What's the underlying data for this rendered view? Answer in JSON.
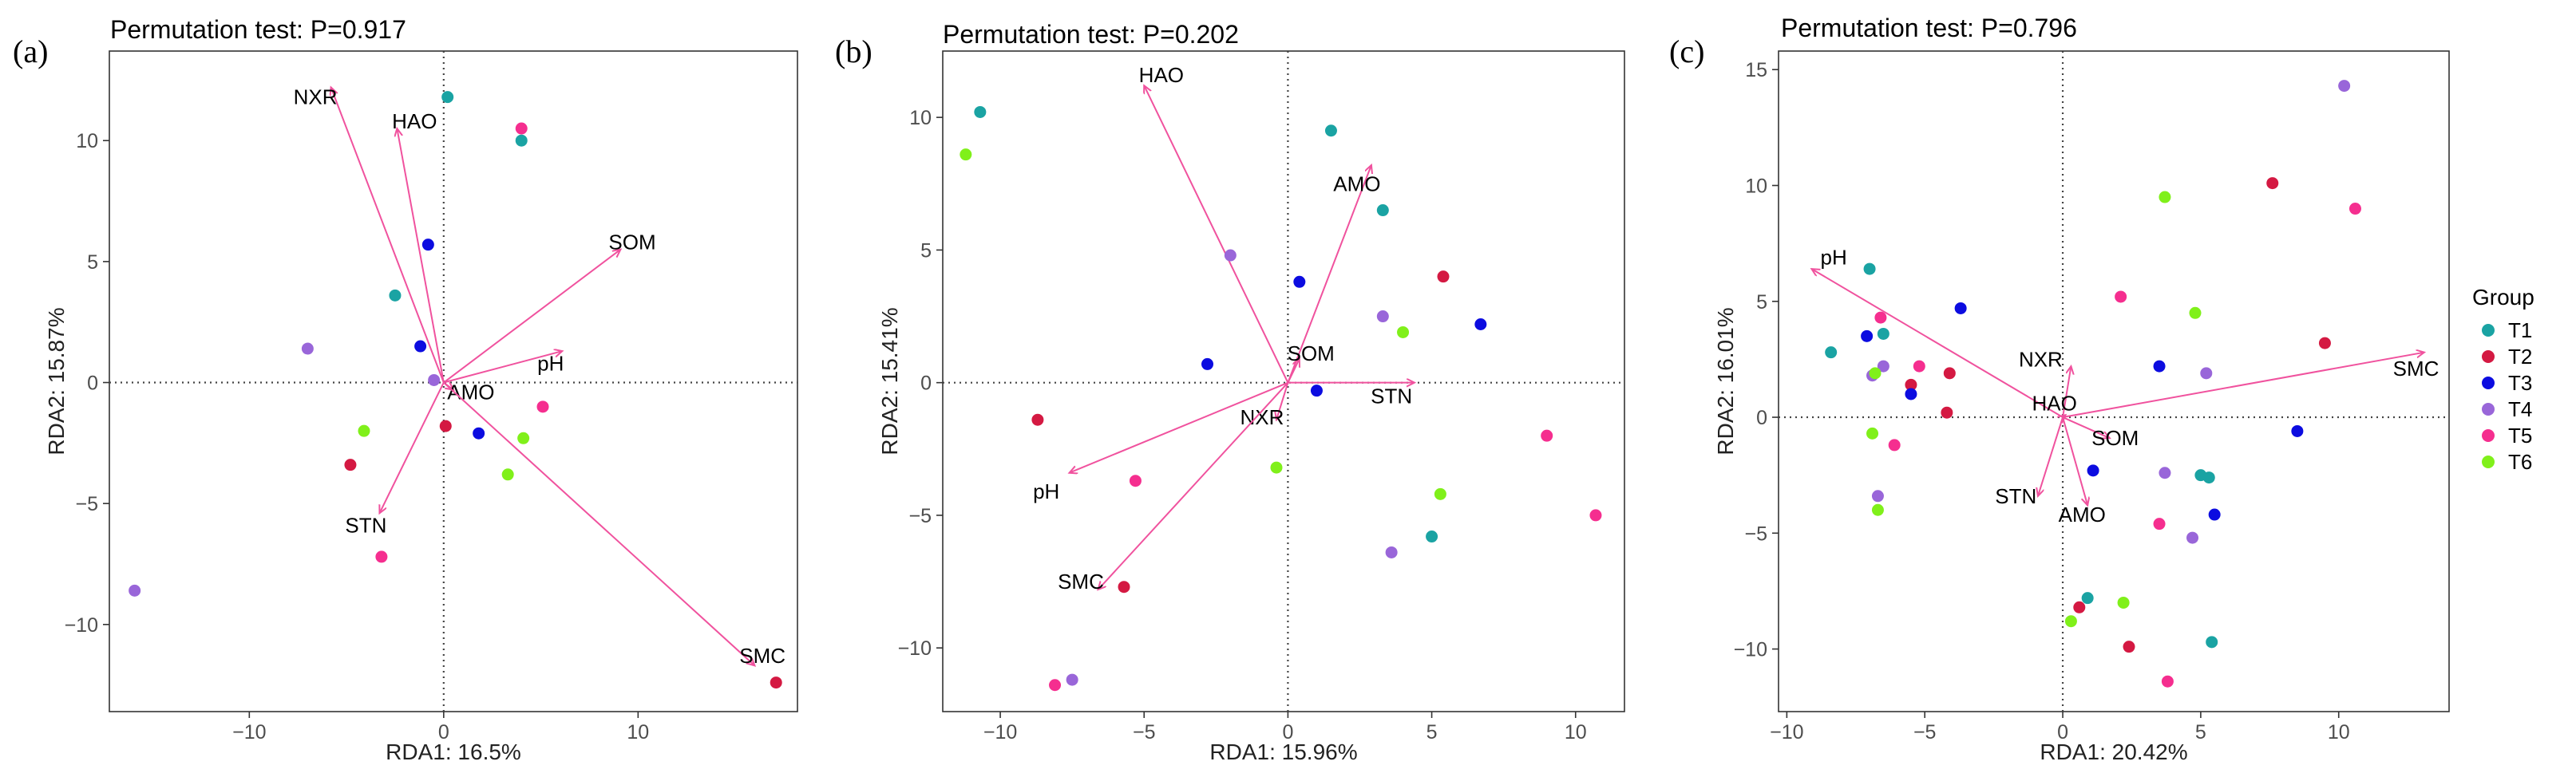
{
  "chart_data": [
    {
      "type": "scatter",
      "panel_label": "(a)",
      "title": "Permutation test: P=0.917",
      "xlabel": "RDA1: 16.5%",
      "ylabel": "RDA2: 15.87%",
      "xlim": [
        -17.2,
        18.2
      ],
      "ylim": [
        -13.6,
        13.7
      ],
      "xticks": [
        -10,
        0,
        10
      ],
      "yticks": [
        -10,
        -5,
        0,
        5,
        10
      ],
      "xtick_labels": [
        "−10",
        "0",
        "10"
      ],
      "ytick_labels": [
        "−10",
        "−5",
        "0",
        "5",
        "10"
      ],
      "arrows": [
        {
          "label": "NXR",
          "x": -5.8,
          "y": 12.2,
          "lx": -6.6,
          "ly": 11.8
        },
        {
          "label": "HAO",
          "x": -2.4,
          "y": 10.5,
          "lx": -1.5,
          "ly": 10.8
        },
        {
          "label": "SOM",
          "x": 9.1,
          "y": 5.5,
          "lx": 9.7,
          "ly": 5.8
        },
        {
          "label": "pH",
          "x": 6.1,
          "y": 1.3,
          "lx": 5.5,
          "ly": 0.8
        },
        {
          "label": "AMO",
          "x": 0.5,
          "y": -0.3,
          "lx": 1.4,
          "ly": -0.4
        },
        {
          "label": "STN",
          "x": -3.3,
          "y": -5.4,
          "lx": -4.0,
          "ly": -5.9
        },
        {
          "label": "SMC",
          "x": 16.0,
          "y": -11.7,
          "lx": 16.4,
          "ly": -11.3
        }
      ],
      "groups": [
        {
          "name": "T1",
          "points": [
            [
              0.2,
              11.8
            ],
            [
              4.0,
              10.0
            ],
            [
              -2.5,
              3.6
            ]
          ]
        },
        {
          "name": "T2",
          "points": [
            [
              -4.8,
              -3.4
            ],
            [
              0.1,
              -1.8
            ],
            [
              17.1,
              -12.4
            ]
          ]
        },
        {
          "name": "T3",
          "points": [
            [
              -0.8,
              5.7
            ],
            [
              -1.2,
              1.5
            ],
            [
              1.8,
              -2.1
            ]
          ]
        },
        {
          "name": "T4",
          "points": [
            [
              -7.0,
              1.4
            ],
            [
              -0.5,
              0.1
            ],
            [
              -15.9,
              -8.6
            ]
          ]
        },
        {
          "name": "T5",
          "points": [
            [
              4.0,
              10.5
            ],
            [
              5.1,
              -1.0
            ],
            [
              -3.2,
              -7.2
            ]
          ]
        },
        {
          "name": "T6",
          "points": [
            [
              -4.1,
              -2.0
            ],
            [
              4.1,
              -2.3
            ],
            [
              3.3,
              -3.8
            ]
          ]
        }
      ]
    },
    {
      "type": "scatter",
      "panel_label": "(b)",
      "title": "Permutation test: P=0.202",
      "xlabel": "RDA1: 15.96%",
      "ylabel": "RDA2: 15.41%",
      "xlim": [
        -12.0,
        11.7
      ],
      "ylim": [
        -12.4,
        12.5
      ],
      "xticks": [
        -10,
        -5,
        0,
        5,
        10
      ],
      "yticks": [
        -10,
        -5,
        0,
        5,
        10
      ],
      "xtick_labels": [
        "−10",
        "−5",
        "0",
        "5",
        "10"
      ],
      "ytick_labels": [
        "−10",
        "−5",
        "0",
        "5",
        "10"
      ],
      "arrows": [
        {
          "label": "HAO",
          "x": -5.0,
          "y": 11.2,
          "lx": -4.4,
          "ly": 11.6
        },
        {
          "label": "AMO",
          "x": 2.9,
          "y": 8.2,
          "lx": 2.4,
          "ly": 7.5
        },
        {
          "label": "SOM",
          "x": 0.4,
          "y": 0.9,
          "lx": 0.8,
          "ly": 1.1
        },
        {
          "label": "STN",
          "x": 4.4,
          "y": 0.0,
          "lx": 3.6,
          "ly": -0.5
        },
        {
          "label": "NXR",
          "x": -0.4,
          "y": -1.4,
          "lx": -0.9,
          "ly": -1.3
        },
        {
          "label": "pH",
          "x": -7.6,
          "y": -3.4,
          "lx": -8.4,
          "ly": -4.1
        },
        {
          "label": "SMC",
          "x": -6.6,
          "y": -7.8,
          "lx": -7.2,
          "ly": -7.5
        }
      ],
      "groups": [
        {
          "name": "T1",
          "points": [
            [
              -10.7,
              10.2
            ],
            [
              1.5,
              9.5
            ],
            [
              3.3,
              6.5
            ],
            [
              5.0,
              -5.8
            ]
          ]
        },
        {
          "name": "T2",
          "points": [
            [
              5.4,
              4.0
            ],
            [
              -8.7,
              -1.4
            ],
            [
              -5.7,
              -7.7
            ]
          ]
        },
        {
          "name": "T3",
          "points": [
            [
              0.4,
              3.8
            ],
            [
              6.7,
              2.2
            ],
            [
              -2.8,
              0.7
            ],
            [
              1.0,
              -0.3
            ]
          ]
        },
        {
          "name": "T4",
          "points": [
            [
              -2.0,
              4.8
            ],
            [
              3.3,
              2.5
            ],
            [
              3.6,
              -6.4
            ],
            [
              -7.5,
              -11.2
            ]
          ]
        },
        {
          "name": "T5",
          "points": [
            [
              -5.3,
              -3.7
            ],
            [
              9.0,
              -2.0
            ],
            [
              10.7,
              -5.0
            ],
            [
              -8.1,
              -11.4
            ]
          ]
        },
        {
          "name": "T6",
          "points": [
            [
              -11.2,
              8.6
            ],
            [
              4.0,
              1.9
            ],
            [
              5.3,
              -4.2
            ],
            [
              -0.4,
              -3.2
            ]
          ]
        }
      ]
    },
    {
      "type": "scatter",
      "panel_label": "(c)",
      "title": "Permutation test: P=0.796",
      "xlabel": "RDA1: 20.42%",
      "ylabel": "RDA2: 16.01%",
      "xlim": [
        -10.3,
        14.0
      ],
      "ylim": [
        -12.7,
        15.8
      ],
      "xticks": [
        -10,
        -5,
        0,
        5,
        10
      ],
      "yticks": [
        -10,
        -5,
        0,
        5,
        10,
        15
      ],
      "xtick_labels": [
        "−10",
        "−5",
        "0",
        "5",
        "10"
      ],
      "ytick_labels": [
        "−10",
        "−5",
        "0",
        "5",
        "10",
        "15"
      ],
      "arrows": [
        {
          "label": "pH",
          "x": -9.1,
          "y": 6.4,
          "lx": -8.3,
          "ly": 6.9
        },
        {
          "label": "SMC",
          "x": 13.1,
          "y": 2.8,
          "lx": 12.8,
          "ly": 2.1
        },
        {
          "label": "NXR",
          "x": 0.3,
          "y": 2.2,
          "lx": -0.8,
          "ly": 2.5
        },
        {
          "label": "HAO",
          "x": 0.1,
          "y": 0.1,
          "lx": -0.3,
          "ly": 0.6
        },
        {
          "label": "SOM",
          "x": 1.7,
          "y": -0.9,
          "lx": 1.9,
          "ly": -0.9
        },
        {
          "label": "STN",
          "x": -0.9,
          "y": -3.4,
          "lx": -1.7,
          "ly": -3.4
        },
        {
          "label": "AMO",
          "x": 0.9,
          "y": -3.8,
          "lx": 0.7,
          "ly": -4.2
        }
      ],
      "groups": [
        {
          "name": "T1",
          "points": [
            [
              -7.0,
              6.4
            ],
            [
              -8.4,
              2.8
            ],
            [
              -6.5,
              3.6
            ],
            [
              5.0,
              -2.5
            ],
            [
              5.3,
              -2.6
            ],
            [
              0.9,
              -7.8
            ],
            [
              5.4,
              -9.7
            ]
          ]
        },
        {
          "name": "T2",
          "points": [
            [
              7.6,
              10.1
            ],
            [
              9.5,
              3.2
            ],
            [
              -4.1,
              1.9
            ],
            [
              -5.5,
              1.4
            ],
            [
              -4.2,
              0.2
            ],
            [
              0.6,
              -8.2
            ],
            [
              2.4,
              -9.9
            ]
          ]
        },
        {
          "name": "T3",
          "points": [
            [
              -3.7,
              4.7
            ],
            [
              -7.1,
              3.5
            ],
            [
              3.5,
              2.2
            ],
            [
              -5.5,
              1.0
            ],
            [
              8.5,
              -0.6
            ],
            [
              1.1,
              -2.3
            ],
            [
              5.5,
              -4.2
            ]
          ]
        },
        {
          "name": "T4",
          "points": [
            [
              10.2,
              14.3
            ],
            [
              -6.5,
              2.2
            ],
            [
              -6.9,
              1.8
            ],
            [
              5.2,
              1.9
            ],
            [
              3.7,
              -2.4
            ],
            [
              -6.7,
              -3.4
            ],
            [
              4.7,
              -5.2
            ]
          ]
        },
        {
          "name": "T5",
          "points": [
            [
              10.6,
              9.0
            ],
            [
              2.1,
              5.2
            ],
            [
              -6.6,
              4.3
            ],
            [
              -5.2,
              2.2
            ],
            [
              -6.1,
              -1.2
            ],
            [
              3.5,
              -4.6
            ],
            [
              3.8,
              -11.4
            ]
          ]
        },
        {
          "name": "T6",
          "points": [
            [
              3.7,
              9.5
            ],
            [
              4.8,
              4.5
            ],
            [
              -6.8,
              1.9
            ],
            [
              -6.9,
              -0.7
            ],
            [
              -6.7,
              -4.0
            ],
            [
              2.2,
              -8.0
            ],
            [
              0.3,
              -8.8
            ]
          ]
        }
      ]
    }
  ],
  "legend": {
    "title": "Group",
    "items": [
      {
        "label": "T1",
        "color": "#1aa3a3"
      },
      {
        "label": "T2",
        "color": "#d41942"
      },
      {
        "label": "T3",
        "color": "#0c0ce0"
      },
      {
        "label": "T4",
        "color": "#9966d9"
      },
      {
        "label": "T5",
        "color": "#f52e8f"
      },
      {
        "label": "T6",
        "color": "#80f01a"
      }
    ]
  },
  "arrow_color": "#f0529e"
}
